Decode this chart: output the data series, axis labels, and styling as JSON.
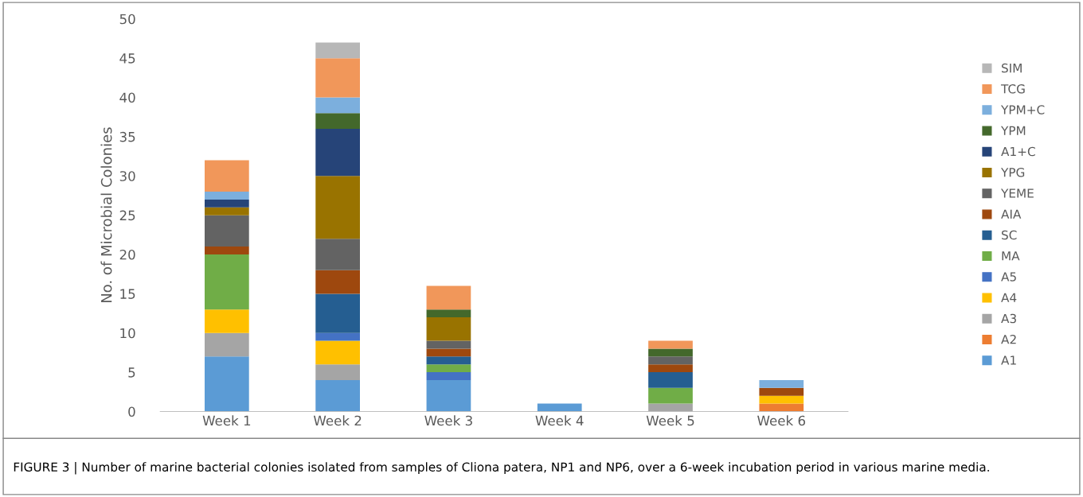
{
  "chart_data": {
    "type": "bar",
    "stacked": true,
    "ylabel": "No. of Microbial Colonies",
    "categories": [
      "Week 1",
      "Week 2",
      "Week 3",
      "Week 4",
      "Week 5",
      "Week 6"
    ],
    "ylim": [
      0,
      50
    ],
    "yticks": [
      0,
      5,
      10,
      15,
      20,
      25,
      30,
      35,
      40,
      45,
      50
    ],
    "grid": false,
    "legend": "right",
    "series": [
      {
        "name": "A1",
        "color": "#5b9bd5",
        "values": [
          7,
          4,
          4,
          1,
          0,
          0
        ]
      },
      {
        "name": "A2",
        "color": "#ed7d31",
        "values": [
          0,
          0,
          0,
          0,
          0,
          1
        ]
      },
      {
        "name": "A3",
        "color": "#a5a5a5",
        "values": [
          3,
          2,
          0,
          0,
          1,
          0
        ]
      },
      {
        "name": "A4",
        "color": "#ffc000",
        "values": [
          3,
          3,
          0,
          0,
          0,
          1
        ]
      },
      {
        "name": "A5",
        "color": "#4472c4",
        "values": [
          0,
          1,
          1,
          0,
          0,
          0
        ]
      },
      {
        "name": "MA",
        "color": "#70ad47",
        "values": [
          7,
          0,
          1,
          0,
          2,
          0
        ]
      },
      {
        "name": "SC",
        "color": "#255e91",
        "values": [
          0,
          5,
          1,
          0,
          2,
          0
        ]
      },
      {
        "name": "AIA",
        "color": "#9e480e",
        "values": [
          1,
          3,
          1,
          0,
          1,
          1
        ]
      },
      {
        "name": "YEME",
        "color": "#636363",
        "values": [
          4,
          4,
          1,
          0,
          1,
          0
        ]
      },
      {
        "name": "YPG",
        "color": "#997300",
        "values": [
          1,
          8,
          3,
          0,
          0,
          0
        ]
      },
      {
        "name": "A1+C",
        "color": "#264478",
        "values": [
          1,
          6,
          0,
          0,
          0,
          0
        ]
      },
      {
        "name": "YPM",
        "color": "#43682b",
        "values": [
          0,
          2,
          1,
          0,
          1,
          0
        ]
      },
      {
        "name": "YPM+C",
        "color": "#7cafdd",
        "values": [
          1,
          2,
          0,
          0,
          0,
          1
        ]
      },
      {
        "name": "TCG",
        "color": "#f1975a",
        "values": [
          4,
          5,
          3,
          0,
          1,
          0
        ]
      },
      {
        "name": "SIM",
        "color": "#b7b7b7",
        "values": [
          0,
          2,
          0,
          0,
          0,
          0
        ]
      }
    ],
    "annotations": [
      "FIGURE 3 | Number of marine bacterial colonies isolated from samples of Cliona patera, NP1 and NP6, over a 6-week incubation period in various marine media."
    ]
  }
}
